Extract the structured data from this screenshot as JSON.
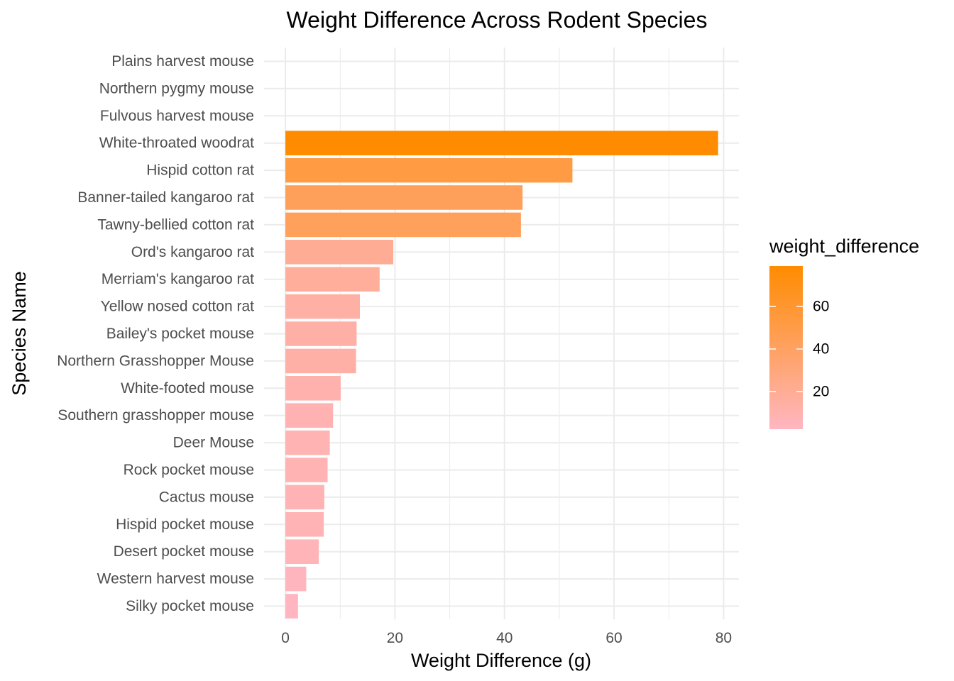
{
  "chart_data": {
    "type": "bar",
    "orientation": "horizontal",
    "title": "Weight Difference Across Rodent Species",
    "xlabel": "Weight Difference (g)",
    "ylabel": "Species Name",
    "xlim": [
      -3.9,
      82.8
    ],
    "xticks": [
      0,
      20,
      40,
      60,
      80
    ],
    "grid": true,
    "legend_position": "right",
    "categories": [
      "Plains harvest mouse",
      "Northern pygmy mouse",
      "Fulvous harvest mouse",
      "White-throated woodrat",
      "Hispid cotton rat",
      "Banner-tailed kangaroo rat",
      "Tawny-bellied cotton rat",
      "Ord's kangaroo rat",
      "Merriam's kangaroo rat",
      "Yellow nosed cotton rat",
      "Bailey's pocket mouse",
      "Northern Grasshopper Mouse",
      "White-footed mouse",
      "Southern grasshopper mouse",
      "Deer Mouse",
      "Rock pocket mouse",
      "Cactus mouse",
      "Hispid pocket mouse",
      "Desert pocket mouse",
      "Western harvest mouse",
      "Silky pocket mouse"
    ],
    "values": [
      null,
      null,
      null,
      79,
      52.4,
      43.3,
      43,
      19.7,
      17.2,
      13.6,
      13,
      12.9,
      10.1,
      8.7,
      8.1,
      7.7,
      7.1,
      7,
      6.1,
      3.8,
      2.3
    ],
    "fill_scale": {
      "name": "weight_difference",
      "low_color": "#FFB6C1",
      "high_color": "#FF8C00",
      "min": 2.3,
      "max": 79,
      "breaks": [
        20,
        40,
        60
      ]
    }
  }
}
